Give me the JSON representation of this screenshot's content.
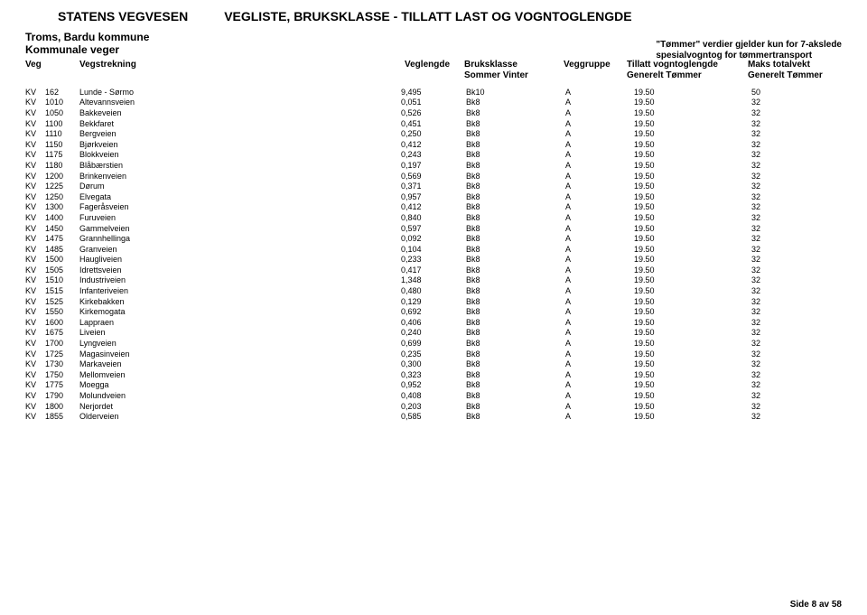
{
  "header": {
    "agency": "STATENS VEGVESEN",
    "title": "VEGLISTE, BRUKSKLASSE - TILLATT LAST OG VOGNTOGLENGDE",
    "municipality": "Troms, Bardu kommune",
    "road_category": "Kommunale veger",
    "note_line1": "\"Tømmer\" verdier gjelder kun for 7-akslede",
    "note_line2": "spesialvogntog for tømmertransport"
  },
  "columns": {
    "veg": "Veg",
    "strekning": "Vegstrekning",
    "veglengde": "Veglengde",
    "bruksklasse": "Bruksklasse",
    "bruksklasse_sub": "Sommer   Vinter",
    "veggruppe": "Veggruppe",
    "vogntoglengde": "Tillatt vogntoglengde",
    "vogntoglengde_sub": "Generelt     Tømmer",
    "maks": "Maks totalvekt",
    "maks_sub": "Generelt Tømmer"
  },
  "rows": [
    {
      "type": "KV",
      "num": "162",
      "name": "Lunde - Sørmo",
      "len": "9,495",
      "bk": "Bk10",
      "grp": "A",
      "gen": "19.50",
      "mk": "50"
    },
    {
      "type": "KV",
      "num": "1010",
      "name": "Altevannsveien",
      "len": "0,051",
      "bk": "Bk8",
      "grp": "A",
      "gen": "19.50",
      "mk": "32"
    },
    {
      "type": "KV",
      "num": "1050",
      "name": "Bakkeveien",
      "len": "0,526",
      "bk": "Bk8",
      "grp": "A",
      "gen": "19.50",
      "mk": "32"
    },
    {
      "type": "KV",
      "num": "1100",
      "name": "Bekkfaret",
      "len": "0,451",
      "bk": "Bk8",
      "grp": "A",
      "gen": "19.50",
      "mk": "32"
    },
    {
      "type": "KV",
      "num": "1110",
      "name": "Bergveien",
      "len": "0,250",
      "bk": "Bk8",
      "grp": "A",
      "gen": "19.50",
      "mk": "32"
    },
    {
      "type": "KV",
      "num": "1150",
      "name": "Bjørkveien",
      "len": "0,412",
      "bk": "Bk8",
      "grp": "A",
      "gen": "19.50",
      "mk": "32"
    },
    {
      "type": "KV",
      "num": "1175",
      "name": "Blokkveien",
      "len": "0,243",
      "bk": "Bk8",
      "grp": "A",
      "gen": "19.50",
      "mk": "32"
    },
    {
      "type": "KV",
      "num": "1180",
      "name": "Blåbærstien",
      "len": "0,197",
      "bk": "Bk8",
      "grp": "A",
      "gen": "19.50",
      "mk": "32"
    },
    {
      "type": "KV",
      "num": "1200",
      "name": "Brinkenveien",
      "len": "0,569",
      "bk": "Bk8",
      "grp": "A",
      "gen": "19.50",
      "mk": "32"
    },
    {
      "type": "KV",
      "num": "1225",
      "name": "Dørum",
      "len": "0,371",
      "bk": "Bk8",
      "grp": "A",
      "gen": "19.50",
      "mk": "32"
    },
    {
      "type": "KV",
      "num": "1250",
      "name": "Elvegata",
      "len": "0,957",
      "bk": "Bk8",
      "grp": "A",
      "gen": "19.50",
      "mk": "32"
    },
    {
      "type": "KV",
      "num": "1300",
      "name": "Fageråsveien",
      "len": "0,412",
      "bk": "Bk8",
      "grp": "A",
      "gen": "19.50",
      "mk": "32"
    },
    {
      "type": "KV",
      "num": "1400",
      "name": "Furuveien",
      "len": "0,840",
      "bk": "Bk8",
      "grp": "A",
      "gen": "19.50",
      "mk": "32"
    },
    {
      "type": "KV",
      "num": "1450",
      "name": "Gammelveien",
      "len": "0,597",
      "bk": "Bk8",
      "grp": "A",
      "gen": "19.50",
      "mk": "32"
    },
    {
      "type": "KV",
      "num": "1475",
      "name": "Grannhellinga",
      "len": "0,092",
      "bk": "Bk8",
      "grp": "A",
      "gen": "19.50",
      "mk": "32"
    },
    {
      "type": "KV",
      "num": "1485",
      "name": "Granveien",
      "len": "0,104",
      "bk": "Bk8",
      "grp": "A",
      "gen": "19.50",
      "mk": "32"
    },
    {
      "type": "KV",
      "num": "1500",
      "name": "Haugliveien",
      "len": "0,233",
      "bk": "Bk8",
      "grp": "A",
      "gen": "19.50",
      "mk": "32"
    },
    {
      "type": "KV",
      "num": "1505",
      "name": "Idrettsveien",
      "len": "0,417",
      "bk": "Bk8",
      "grp": "A",
      "gen": "19.50",
      "mk": "32"
    },
    {
      "type": "KV",
      "num": "1510",
      "name": "Industriveien",
      "len": "1,348",
      "bk": "Bk8",
      "grp": "A",
      "gen": "19.50",
      "mk": "32"
    },
    {
      "type": "KV",
      "num": "1515",
      "name": "Infanteriveien",
      "len": "0,480",
      "bk": "Bk8",
      "grp": "A",
      "gen": "19.50",
      "mk": "32"
    },
    {
      "type": "KV",
      "num": "1525",
      "name": "Kirkebakken",
      "len": "0,129",
      "bk": "Bk8",
      "grp": "A",
      "gen": "19.50",
      "mk": "32"
    },
    {
      "type": "KV",
      "num": "1550",
      "name": "Kirkemogata",
      "len": "0,692",
      "bk": "Bk8",
      "grp": "A",
      "gen": "19.50",
      "mk": "32"
    },
    {
      "type": "KV",
      "num": "1600",
      "name": "Lappraen",
      "len": "0,406",
      "bk": "Bk8",
      "grp": "A",
      "gen": "19.50",
      "mk": "32"
    },
    {
      "type": "KV",
      "num": "1675",
      "name": "Liveien",
      "len": "0,240",
      "bk": "Bk8",
      "grp": "A",
      "gen": "19.50",
      "mk": "32"
    },
    {
      "type": "KV",
      "num": "1700",
      "name": "Lyngveien",
      "len": "0,699",
      "bk": "Bk8",
      "grp": "A",
      "gen": "19.50",
      "mk": "32"
    },
    {
      "type": "KV",
      "num": "1725",
      "name": "Magasinveien",
      "len": "0,235",
      "bk": "Bk8",
      "grp": "A",
      "gen": "19.50",
      "mk": "32"
    },
    {
      "type": "KV",
      "num": "1730",
      "name": "Markaveien",
      "len": "0,300",
      "bk": "Bk8",
      "grp": "A",
      "gen": "19.50",
      "mk": "32"
    },
    {
      "type": "KV",
      "num": "1750",
      "name": "Mellomveien",
      "len": "0,323",
      "bk": "Bk8",
      "grp": "A",
      "gen": "19.50",
      "mk": "32"
    },
    {
      "type": "KV",
      "num": "1775",
      "name": "Moegga",
      "len": "0,952",
      "bk": "Bk8",
      "grp": "A",
      "gen": "19.50",
      "mk": "32"
    },
    {
      "type": "KV",
      "num": "1790",
      "name": "Molundveien",
      "len": "0,408",
      "bk": "Bk8",
      "grp": "A",
      "gen": "19.50",
      "mk": "32"
    },
    {
      "type": "KV",
      "num": "1800",
      "name": "Nerjordet",
      "len": "0,203",
      "bk": "Bk8",
      "grp": "A",
      "gen": "19.50",
      "mk": "32"
    },
    {
      "type": "KV",
      "num": "1855",
      "name": "Olderveien",
      "len": "0,585",
      "bk": "Bk8",
      "grp": "A",
      "gen": "19.50",
      "mk": "32"
    }
  ],
  "footer": {
    "page_label": "Side 8 av 58"
  }
}
